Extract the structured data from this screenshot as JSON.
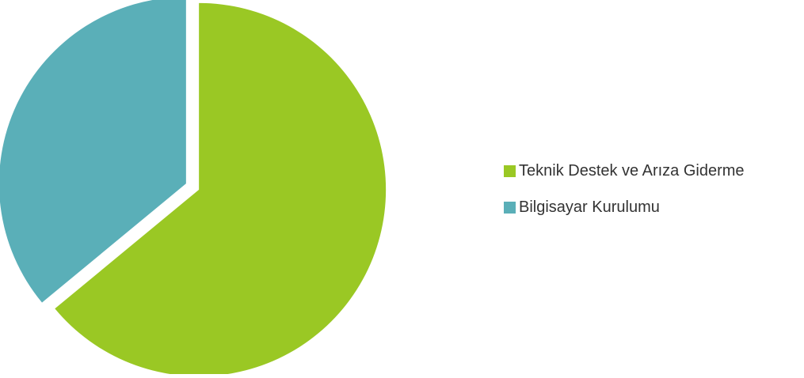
{
  "chart_data": {
    "type": "pie",
    "title": "",
    "categories": [
      "Teknik Destek ve Arıza Giderme",
      "Bilgisayar Kurulumu"
    ],
    "values": [
      64,
      36
    ],
    "colors": [
      "#9AC824",
      "#5AAFB8"
    ],
    "start_angle_deg": 0,
    "direction": "clockwise",
    "exploded": true,
    "data_labels": false,
    "legend_position": "right"
  }
}
